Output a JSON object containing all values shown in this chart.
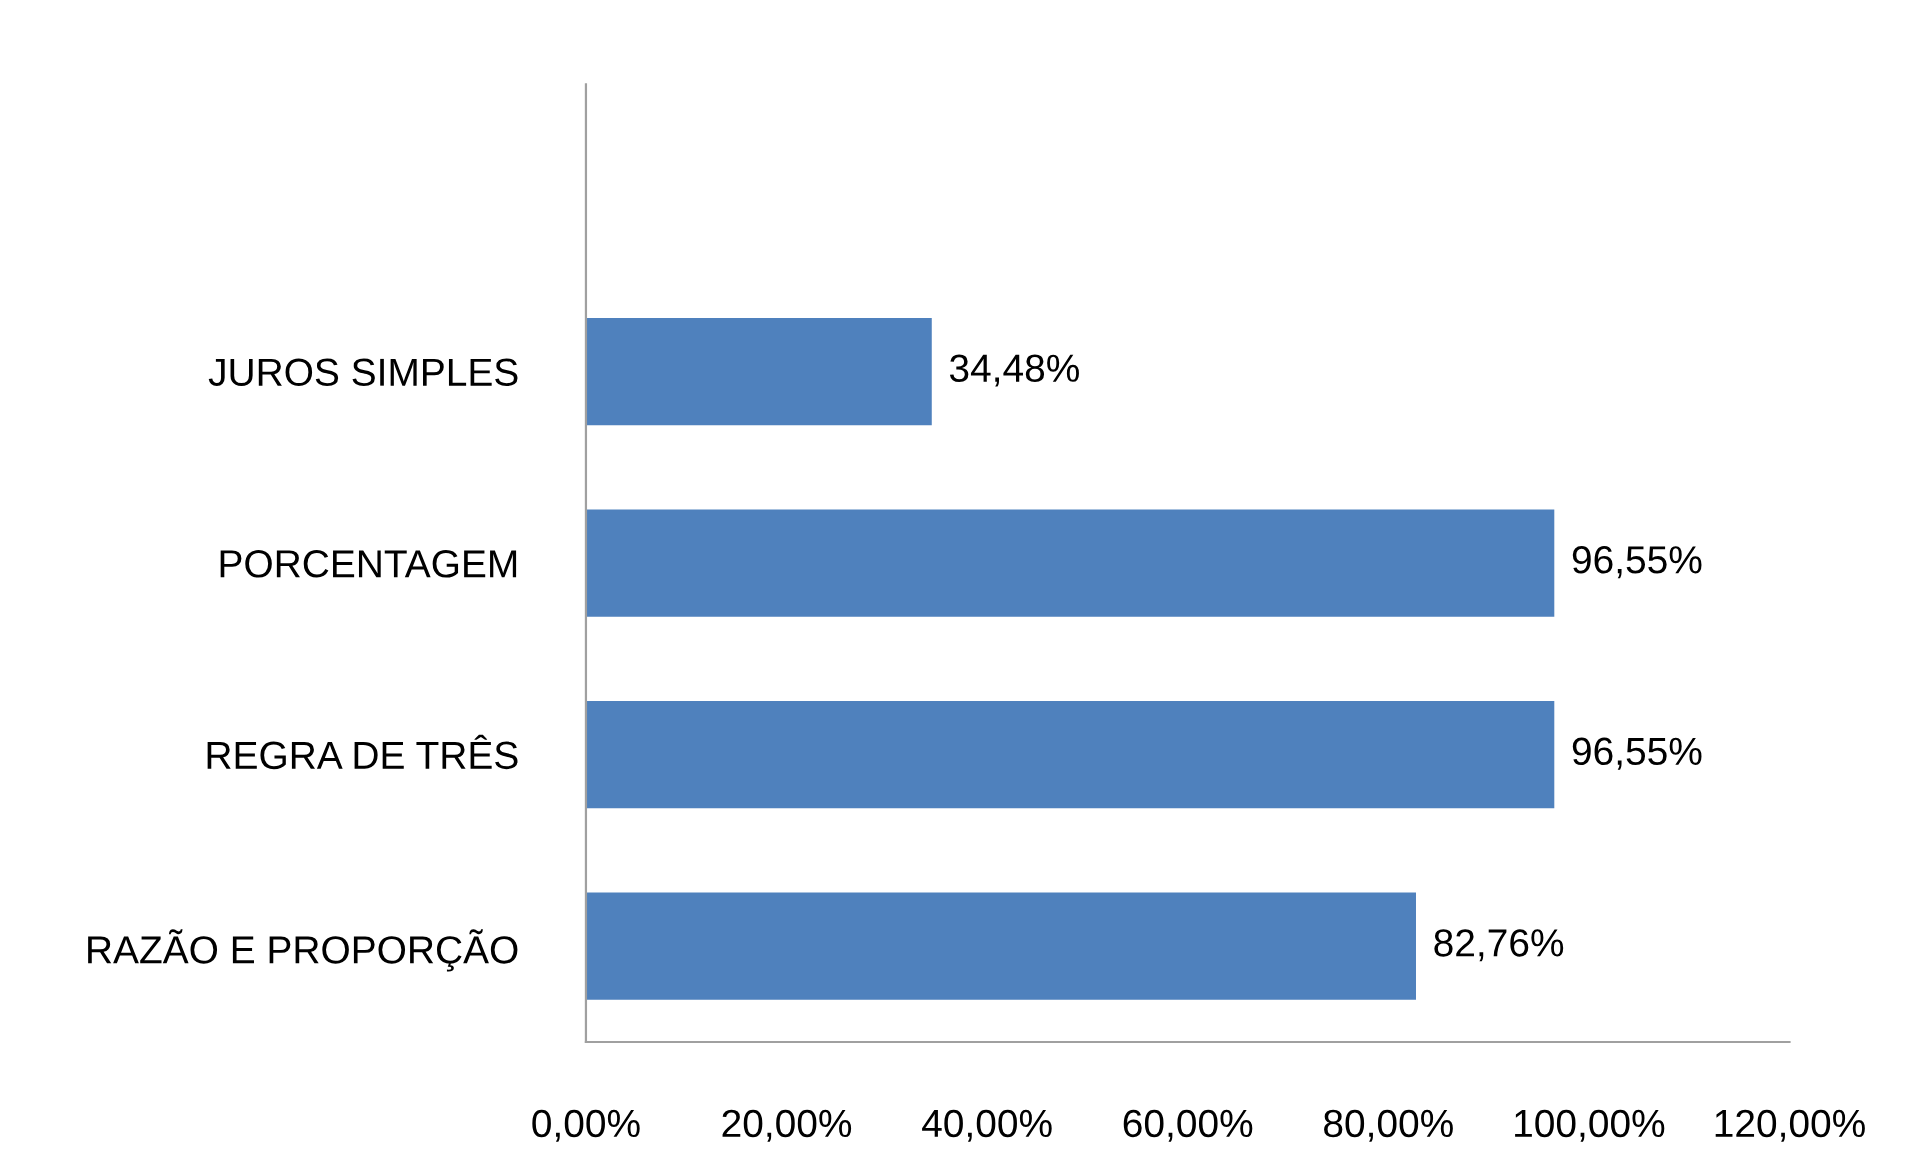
{
  "chart_data": {
    "type": "bar",
    "orientation": "horizontal",
    "categories": [
      null,
      "JUROS SIMPLES",
      "PORCENTAGEM",
      "REGRA DE TRÊS",
      "RAZÃO E PROPORÇÃO"
    ],
    "values": [
      null,
      34.48,
      96.55,
      96.55,
      82.76
    ],
    "value_labels": [
      null,
      "34,48%",
      "96,55%",
      "96,55%",
      "82,76%"
    ],
    "color": "#4f81bd",
    "xlim": [
      0,
      120
    ],
    "xticks": [
      {
        "value": 0,
        "label": "0,00%"
      },
      {
        "value": 20,
        "label": "20,00%"
      },
      {
        "value": 40,
        "label": "40,00%"
      },
      {
        "value": 60,
        "label": "60,00%"
      },
      {
        "value": 80,
        "label": "80,00%"
      },
      {
        "value": 100,
        "label": "100,00%"
      },
      {
        "value": 120,
        "label": "120,00%"
      }
    ],
    "grid": false,
    "legend": false
  }
}
